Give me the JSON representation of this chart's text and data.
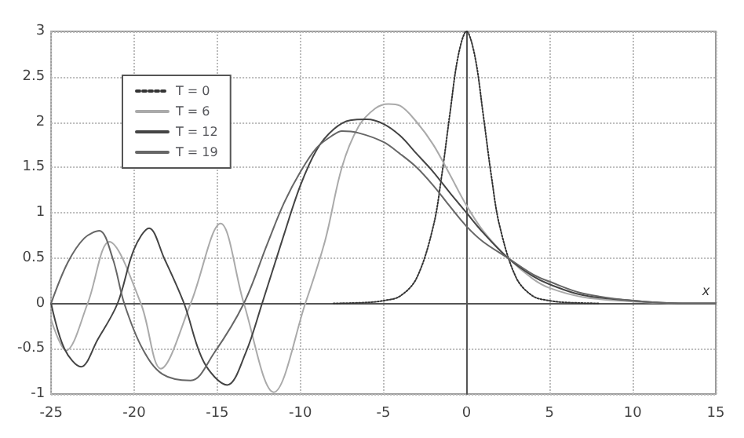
{
  "chart_data": {
    "type": "line",
    "xlabel": "x",
    "xlim": [
      -25,
      15
    ],
    "ylim": [
      -1,
      3
    ],
    "xticks": [
      -25,
      -20,
      -15,
      -10,
      -5,
      0,
      5,
      10,
      15
    ],
    "yticks": [
      -1,
      -0.5,
      0,
      0.5,
      1,
      1.5,
      2,
      2.5,
      3
    ],
    "grid": true,
    "legend": "top left",
    "marker": "none",
    "series": [
      {
        "name": "T = 0",
        "color": "#333333",
        "line_style": "dotted",
        "x": [
          -8,
          -6,
          -5,
          -4,
          -3,
          -2,
          -1.5,
          -1,
          -0.5,
          0,
          0.5,
          1,
          1.5,
          2,
          3,
          4,
          5,
          6,
          8
        ],
        "values": [
          0,
          0.01,
          0.03,
          0.08,
          0.28,
          0.85,
          1.4,
          2.09,
          2.73,
          3,
          2.73,
          2.09,
          1.4,
          0.85,
          0.28,
          0.08,
          0.03,
          0.01,
          0
        ]
      },
      {
        "name": "T = 6",
        "color": "#aaaaaa",
        "line_style": "solid",
        "x": [
          -25,
          -24.1,
          -22.8,
          -21.5,
          -19.6,
          -18.4,
          -16.6,
          -14.8,
          -13.4,
          -11.6,
          -9.7,
          -8.5,
          -7.5,
          -6.5,
          -5.5,
          -4.7,
          -4,
          -3,
          -2,
          -1,
          0,
          1,
          2.5,
          4,
          5,
          7,
          10,
          13,
          15
        ],
        "values": [
          -0.18,
          -0.52,
          0,
          0.68,
          0,
          -0.72,
          0,
          0.88,
          0,
          -0.98,
          0,
          0.7,
          1.5,
          1.95,
          2.15,
          2.2,
          2.18,
          2,
          1.75,
          1.42,
          1.08,
          0.8,
          0.5,
          0.27,
          0.17,
          0.07,
          0.02,
          0,
          0
        ]
      },
      {
        "name": "T = 12",
        "color": "#444444",
        "line_style": "solid",
        "x": [
          -25,
          -24.2,
          -23.2,
          -22.2,
          -21,
          -20,
          -19.1,
          -18.2,
          -17,
          -15.8,
          -14.4,
          -13.3,
          -12.3,
          -11,
          -10,
          -9,
          -8,
          -7,
          -6,
          -5,
          -4,
          -3,
          -2,
          -1,
          0,
          1,
          2.5,
          4,
          5,
          7,
          10,
          13,
          15
        ],
        "values": [
          0,
          -0.5,
          -0.7,
          -0.4,
          0,
          0.6,
          0.83,
          0.5,
          0,
          -0.65,
          -0.9,
          -0.55,
          0,
          0.75,
          1.3,
          1.7,
          1.92,
          2.02,
          2.03,
          1.98,
          1.85,
          1.65,
          1.45,
          1.22,
          1,
          0.78,
          0.5,
          0.3,
          0.21,
          0.09,
          0.03,
          0,
          0
        ]
      },
      {
        "name": "T = 19",
        "color": "#666666",
        "line_style": "solid",
        "x": [
          -25,
          -24,
          -23,
          -22.1,
          -21.3,
          -20.6,
          -19.5,
          -18.3,
          -16.6,
          -15.2,
          -13.4,
          -12,
          -11,
          -10,
          -9,
          -8,
          -7.5,
          -6.5,
          -5,
          -4,
          -3,
          -2,
          -1,
          0,
          1,
          2.5,
          4,
          5,
          7,
          10,
          13,
          15
        ],
        "values": [
          0,
          0.45,
          0.72,
          0.8,
          0.5,
          0,
          -0.5,
          -0.78,
          -0.85,
          -0.55,
          0,
          0.65,
          1.1,
          1.45,
          1.72,
          1.86,
          1.9,
          1.88,
          1.78,
          1.65,
          1.5,
          1.3,
          1.07,
          0.85,
          0.68,
          0.5,
          0.32,
          0.24,
          0.11,
          0.03,
          0,
          0
        ]
      }
    ]
  }
}
